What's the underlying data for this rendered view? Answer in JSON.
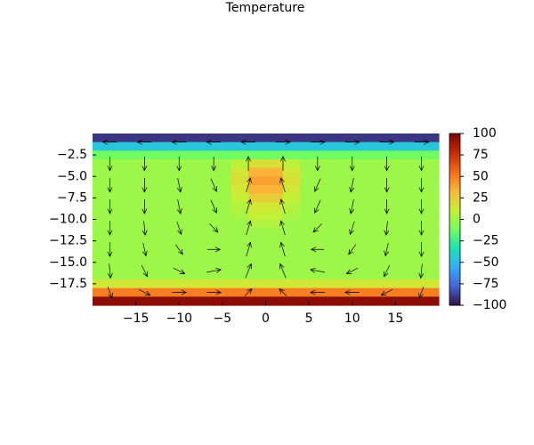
{
  "chart_data": {
    "type": "heatmap",
    "title": "Temperature",
    "xlim": [
      -20,
      20
    ],
    "ylim": [
      -20,
      0
    ],
    "xticks": [
      {
        "value": -15,
        "label": "−15"
      },
      {
        "value": -10,
        "label": "−10"
      },
      {
        "value": -5,
        "label": "−5"
      },
      0,
      5,
      10,
      15
    ],
    "yticks": [
      {
        "value": -2.5,
        "label": "−2.5"
      },
      {
        "value": -5,
        "label": "−5.0"
      },
      {
        "value": -7.5,
        "label": "−7.5"
      },
      {
        "value": -10,
        "label": "−10.0"
      },
      {
        "value": -12.5,
        "label": "−12.5"
      },
      {
        "value": -15,
        "label": "−15.0"
      },
      {
        "value": -17.5,
        "label": "−17.5"
      }
    ],
    "clim": [
      -100,
      100
    ],
    "cticks": [
      100,
      75,
      50,
      25,
      0,
      {
        "value": -25,
        "label": "−25"
      },
      {
        "value": -50,
        "label": "−50"
      },
      {
        "value": -75,
        "label": "−75"
      },
      {
        "value": -100,
        "label": "−100"
      }
    ],
    "colormap": [
      "#30123b",
      "#4662d7",
      "#36aaf9",
      "#1ae4b6",
      "#72fe5e",
      "#c8ef34",
      "#faba39",
      "#f66b19",
      "#ca2a04",
      "#7a0403"
    ],
    "heatmap": {
      "x": [
        -19,
        -17,
        -15,
        -13,
        -11,
        -9,
        -7,
        -5,
        -3,
        -1,
        1,
        3,
        5,
        7,
        9,
        11,
        13,
        15,
        17,
        19
      ],
      "y": [
        -0.5,
        -1.5,
        -2.5,
        -3.5,
        -4.5,
        -5.5,
        -6.5,
        -7.5,
        -8.5,
        -9.5,
        -10.5,
        -11.5,
        -12.5,
        -13.5,
        -14.5,
        -15.5,
        -16.5,
        -17.5,
        -18.5,
        -19.5
      ],
      "z": [
        [
          -90,
          -90,
          -90,
          -90,
          -90,
          -90,
          -90,
          -90,
          -90,
          -90,
          -90,
          -90,
          -90,
          -90,
          -90,
          -90,
          -90,
          -90,
          -90,
          -90
        ],
        [
          -45,
          -45,
          -45,
          -45,
          -45,
          -45,
          -45,
          -45,
          -45,
          -45,
          -45,
          -45,
          -45,
          -45,
          -45,
          -45,
          -45,
          -45,
          -45,
          -45
        ],
        [
          -12,
          -12,
          -12,
          -12,
          -12,
          -12,
          -12,
          -12,
          -12,
          -12,
          -12,
          -12,
          -12,
          -12,
          -12,
          -12,
          -12,
          -12,
          -12,
          -12
        ],
        [
          0,
          0,
          0,
          0,
          0,
          0,
          0,
          0,
          8,
          18,
          18,
          8,
          0,
          0,
          0,
          0,
          0,
          0,
          0,
          0
        ],
        [
          0,
          0,
          0,
          0,
          0,
          0,
          0,
          0,
          15,
          35,
          35,
          15,
          0,
          0,
          0,
          0,
          0,
          0,
          0,
          0
        ],
        [
          0,
          0,
          0,
          0,
          0,
          0,
          0,
          0,
          18,
          40,
          40,
          18,
          0,
          0,
          0,
          0,
          0,
          0,
          0,
          0
        ],
        [
          0,
          0,
          0,
          0,
          0,
          0,
          0,
          0,
          15,
          35,
          35,
          15,
          0,
          0,
          0,
          0,
          0,
          0,
          0,
          0
        ],
        [
          0,
          0,
          0,
          0,
          0,
          0,
          0,
          0,
          10,
          25,
          25,
          10,
          0,
          0,
          0,
          0,
          0,
          0,
          0,
          0
        ],
        [
          0,
          0,
          0,
          0,
          0,
          0,
          0,
          0,
          6,
          15,
          15,
          6,
          0,
          0,
          0,
          0,
          0,
          0,
          0,
          0
        ],
        [
          0,
          0,
          0,
          0,
          0,
          0,
          0,
          0,
          3,
          10,
          10,
          3,
          0,
          0,
          0,
          0,
          0,
          0,
          0,
          0
        ],
        [
          0,
          0,
          0,
          0,
          0,
          0,
          0,
          0,
          0,
          5,
          5,
          0,
          0,
          0,
          0,
          0,
          0,
          0,
          0,
          0
        ],
        [
          0,
          0,
          0,
          0,
          0,
          0,
          0,
          0,
          0,
          0,
          0,
          0,
          0,
          0,
          0,
          0,
          0,
          0,
          0,
          0
        ],
        [
          0,
          0,
          0,
          0,
          0,
          0,
          0,
          0,
          0,
          0,
          0,
          0,
          0,
          0,
          0,
          0,
          0,
          0,
          0,
          0
        ],
        [
          0,
          0,
          0,
          0,
          0,
          0,
          0,
          0,
          0,
          0,
          0,
          0,
          0,
          0,
          0,
          0,
          0,
          0,
          0,
          0
        ],
        [
          0,
          0,
          0,
          0,
          0,
          0,
          0,
          0,
          0,
          0,
          0,
          0,
          0,
          0,
          0,
          0,
          0,
          0,
          0,
          0
        ],
        [
          0,
          0,
          0,
          0,
          0,
          0,
          0,
          0,
          0,
          0,
          0,
          0,
          0,
          0,
          0,
          0,
          0,
          0,
          0,
          0
        ],
        [
          0,
          0,
          0,
          0,
          0,
          0,
          0,
          0,
          0,
          0,
          0,
          0,
          0,
          0,
          0,
          0,
          0,
          0,
          0,
          0
        ],
        [
          15,
          15,
          15,
          15,
          15,
          15,
          15,
          15,
          15,
          15,
          15,
          15,
          15,
          15,
          15,
          15,
          15,
          15,
          15,
          15
        ],
        [
          50,
          50,
          50,
          50,
          50,
          50,
          50,
          50,
          50,
          50,
          50,
          50,
          50,
          50,
          50,
          50,
          50,
          50,
          50,
          50
        ],
        [
          95,
          95,
          95,
          95,
          95,
          95,
          95,
          95,
          95,
          95,
          95,
          95,
          95,
          95,
          95,
          95,
          95,
          95,
          95,
          95
        ]
      ]
    },
    "quiver": {
      "x": [
        -18,
        -14,
        -10,
        -6,
        -2,
        2,
        6,
        10,
        14,
        18
      ],
      "y": [
        -1,
        -3.5,
        -6,
        -8.5,
        -11,
        -13.5,
        -16,
        -18.5
      ],
      "u": [
        [
          -1,
          -1,
          -1,
          -1,
          -1,
          1,
          1,
          1,
          1,
          1
        ],
        [
          0,
          0,
          0,
          0,
          0,
          0,
          0,
          0,
          0,
          0
        ],
        [
          0,
          0,
          0.2,
          0.4,
          0.3,
          -0.3,
          -0.4,
          -0.2,
          0,
          0
        ],
        [
          0,
          0,
          0.2,
          0.4,
          0.3,
          -0.3,
          -0.4,
          -0.2,
          0,
          0
        ],
        [
          0,
          0.1,
          0.3,
          0.6,
          0.3,
          -0.3,
          -0.6,
          -0.3,
          -0.1,
          0
        ],
        [
          0,
          0.2,
          0.5,
          0.9,
          0.3,
          -0.3,
          -0.9,
          -0.5,
          -0.2,
          0
        ],
        [
          0.1,
          0.4,
          0.8,
          1,
          0.4,
          -0.4,
          -1,
          -0.8,
          -0.4,
          -0.1
        ],
        [
          0.3,
          0.8,
          1,
          1,
          0.5,
          -0.5,
          -1,
          -1,
          -0.8,
          -0.3
        ]
      ],
      "v": [
        [
          0,
          0,
          0,
          0,
          0,
          0,
          0,
          0,
          0,
          0
        ],
        [
          -1,
          -1,
          -1,
          -1,
          1,
          1,
          -1,
          -1,
          -1,
          -1
        ],
        [
          -1,
          -1,
          -1,
          -0.9,
          1,
          1,
          -0.9,
          -1,
          -1,
          -1
        ],
        [
          -1,
          -1,
          -1,
          -0.9,
          1,
          1,
          -0.9,
          -1,
          -1,
          -1
        ],
        [
          -1,
          -1,
          -0.9,
          -0.6,
          1,
          1,
          -0.6,
          -0.9,
          -1,
          -1
        ],
        [
          -1,
          -0.9,
          -0.7,
          0,
          1,
          1,
          0,
          -0.7,
          -0.9,
          -1
        ],
        [
          -1,
          -0.8,
          -0.4,
          0.2,
          1,
          1,
          0.2,
          -0.4,
          -0.8,
          -1
        ],
        [
          -0.8,
          -0.4,
          0,
          0,
          0.5,
          0.5,
          0,
          0,
          -0.4,
          -0.8
        ]
      ]
    }
  }
}
